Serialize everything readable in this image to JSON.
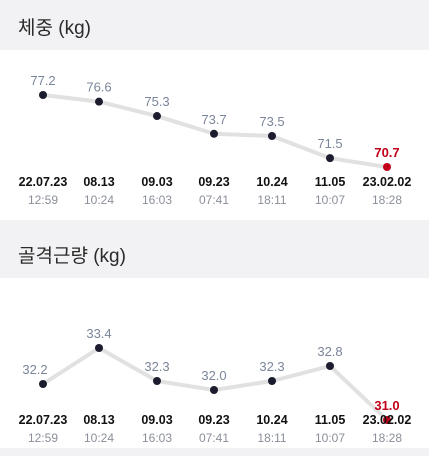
{
  "sections": [
    {
      "title": "체중 (kg)",
      "chart_data": {
        "type": "line",
        "categories": [
          "22.07.23",
          "08.13",
          "09.03",
          "09.23",
          "10.24",
          "11.05",
          "23.02.02"
        ],
        "times": [
          "12:59",
          "10:24",
          "16:03",
          "07:41",
          "18:11",
          "10:07",
          "18:28"
        ],
        "values": [
          77.2,
          76.6,
          75.3,
          73.7,
          73.5,
          71.5,
          70.7
        ],
        "value_labels": [
          "77.2",
          "76.6",
          "75.3",
          "73.7",
          "73.5",
          "71.5",
          "70.7"
        ],
        "highlight_color": "#c2001a",
        "point_color": "#1b1c2e",
        "line_color": "#e1e1e1"
      }
    },
    {
      "title": "골격근량 (kg)",
      "chart_data": {
        "type": "line",
        "categories": [
          "22.07.23",
          "08.13",
          "09.03",
          "09.23",
          "10.24",
          "11.05",
          "23.02.02"
        ],
        "times": [
          "12:59",
          "10:24",
          "16:03",
          "07:41",
          "18:11",
          "10:07",
          "18:28"
        ],
        "values": [
          32.2,
          33.4,
          32.3,
          32.0,
          32.3,
          32.8,
          31.0
        ],
        "value_labels": [
          "32.2",
          "33.4",
          "32.3",
          "32.0",
          "32.3",
          "32.8",
          "31.0"
        ],
        "highlight_color": "#c2001a",
        "point_color": "#1b1c2e",
        "line_color": "#e1e1e1"
      }
    }
  ]
}
